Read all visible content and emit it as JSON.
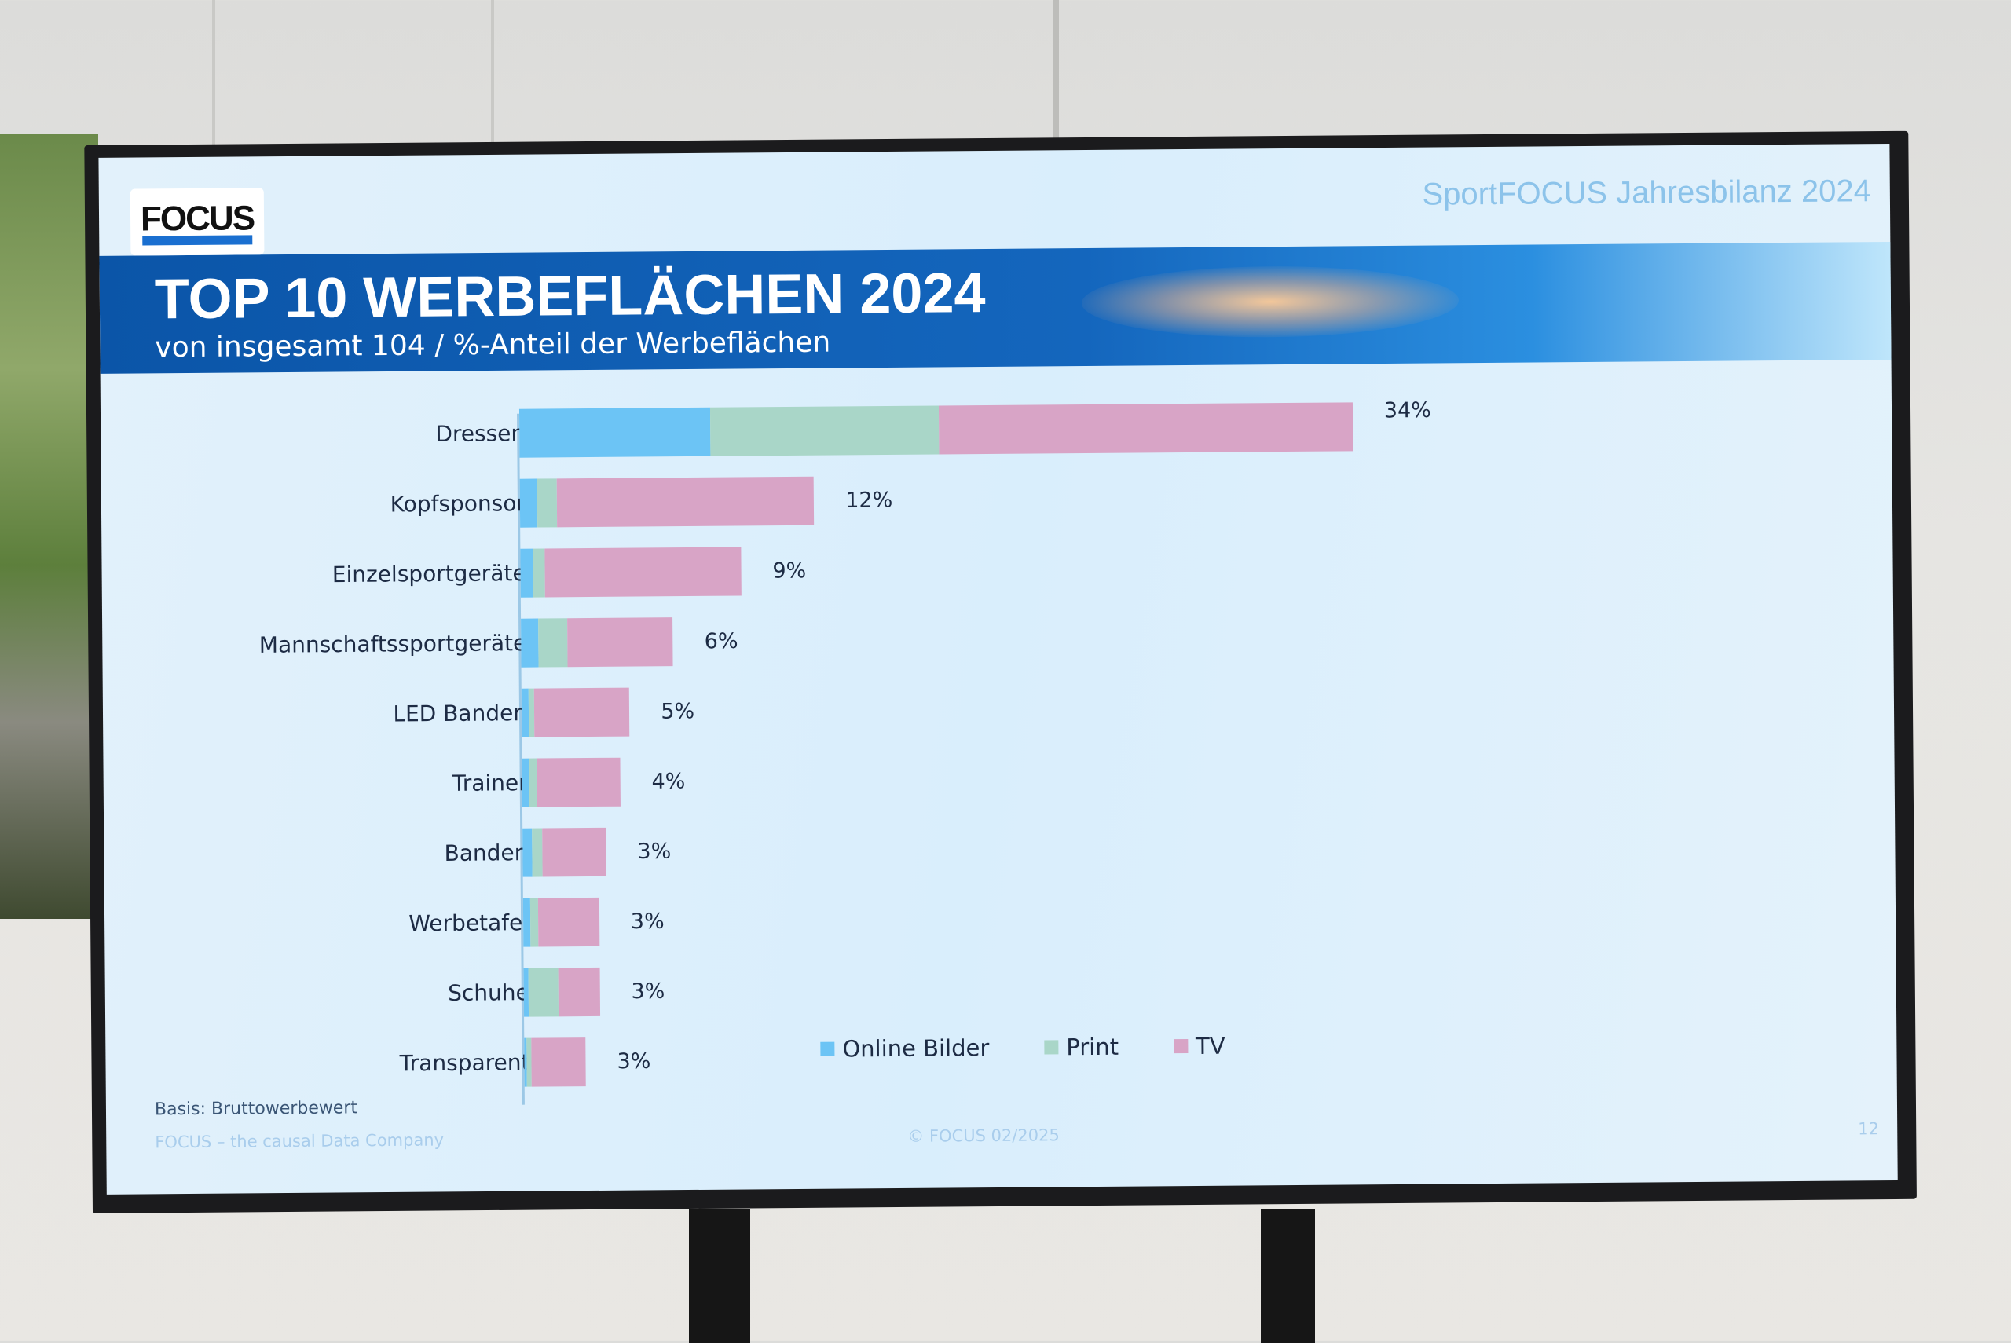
{
  "slide": {
    "brand": "SportFOCUS Jahresbilanz 2024",
    "logo_text": "FOCUS",
    "title": "TOP 10 WERBEFLÄCHEN 2024",
    "subtitle": "von insgesamt 104 / %-Anteil der Werbeflächen",
    "basis": "Basis: Bruttowerbewert",
    "footer_left": "FOCUS – the causal Data Company",
    "footer_center": "© FOCUS 02/2025",
    "page_number": "12"
  },
  "chart_data": {
    "type": "bar",
    "orientation": "horizontal",
    "stacked": true,
    "title": "TOP 10 WERBEFLÄCHEN 2024",
    "categories": [
      "Dressen",
      "Kopfsponsor",
      "Einzelsportgeräte",
      "Mannschaftssportgeräte",
      "LED Banden",
      "Trainer",
      "Banden",
      "Werbetafel",
      "Schuhe",
      "Transparent"
    ],
    "totals_labels": [
      "34%",
      "12%",
      "9%",
      "6%",
      "5%",
      "4%",
      "3%",
      "3%",
      "3%",
      "3%"
    ],
    "series": [
      {
        "name": "Online Bilder",
        "color": "#6cc4f5",
        "values": [
          7.8,
          0.7,
          0.5,
          0.7,
          0.3,
          0.3,
          0.4,
          0.3,
          0.2,
          0.1
        ]
      },
      {
        "name": "Print",
        "color": "#a9d6c8",
        "values": [
          9.3,
          0.8,
          0.5,
          1.2,
          0.2,
          0.3,
          0.4,
          0.3,
          1.2,
          0.2
        ]
      },
      {
        "name": "TV",
        "color": "#d8a4c6",
        "values": [
          16.9,
          10.5,
          8.0,
          4.3,
          3.9,
          3.4,
          2.6,
          2.5,
          1.7,
          2.2
        ]
      }
    ],
    "xlim": [
      0,
      36
    ],
    "grid": false,
    "legend_position": "bottom"
  }
}
